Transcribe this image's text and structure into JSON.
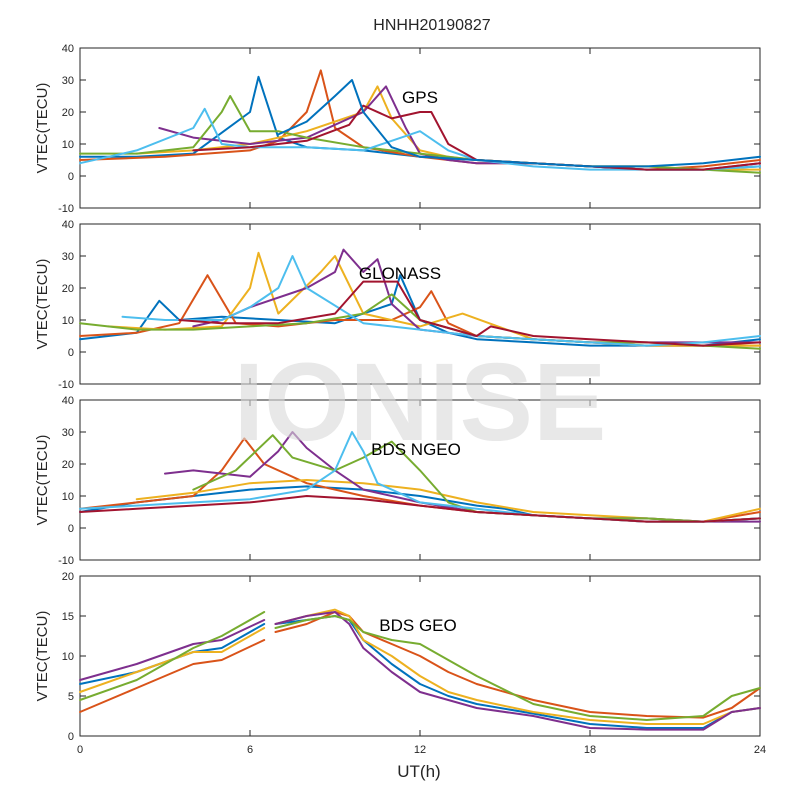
{
  "figure": {
    "title": "HNHH20190827",
    "watermark": "IONISE",
    "xlabel": "UT(h)"
  },
  "palette": [
    "#0072BD",
    "#D95319",
    "#EDB120",
    "#7E2F8E",
    "#77AC30",
    "#4DBEEE",
    "#A2142F"
  ],
  "chart_data": [
    {
      "type": "line",
      "label": "GPS",
      "ylabel": "VTEC(TECU)",
      "xlim": [
        0,
        24
      ],
      "ylim": [
        -10,
        40
      ],
      "yticks": [
        -10,
        0,
        10,
        20,
        30,
        40
      ],
      "xticks": [
        0,
        6,
        12,
        18,
        24
      ],
      "show_xtick_labels": false,
      "series": [
        {
          "x": [
            0,
            2,
            4,
            6,
            6.3,
            7,
            8,
            10,
            12,
            14,
            16,
            18,
            20,
            22,
            24
          ],
          "y": [
            6,
            6,
            7,
            20,
            31,
            12,
            9,
            8,
            6,
            5,
            4,
            3,
            2,
            2,
            3
          ]
        },
        {
          "x": [
            0,
            3,
            6,
            7,
            8,
            8.5,
            9,
            10,
            12,
            14,
            16,
            18,
            20,
            22,
            24
          ],
          "y": [
            5,
            6,
            8,
            11,
            20,
            33,
            15,
            9,
            6,
            4,
            4,
            3,
            2,
            3,
            5
          ]
        },
        {
          "x": [
            2,
            4,
            6,
            8,
            10,
            10.5,
            11,
            12,
            13,
            14,
            16,
            18,
            20,
            22,
            24
          ],
          "y": [
            7,
            8,
            10,
            14,
            20,
            28,
            18,
            8,
            6,
            5,
            4,
            3,
            3,
            2,
            2
          ]
        },
        {
          "x": [
            2.8,
            4,
            6,
            8,
            10,
            10.8,
            11.5,
            12,
            13,
            14,
            16,
            18,
            20,
            22,
            24
          ],
          "y": [
            15,
            12,
            10,
            12,
            20,
            28,
            15,
            7,
            5,
            4,
            4,
            3,
            2,
            2,
            4
          ]
        },
        {
          "x": [
            0,
            2,
            4,
            5,
            5.3,
            6,
            7,
            8,
            10,
            12,
            14,
            16,
            18,
            20,
            22,
            24
          ],
          "y": [
            7,
            7,
            9,
            20,
            25,
            14,
            14,
            12,
            9,
            7,
            5,
            4,
            3,
            3,
            2,
            1
          ]
        },
        {
          "x": [
            0,
            2,
            4,
            4.4,
            5,
            6,
            8,
            10,
            11,
            12,
            13,
            14,
            16,
            18,
            20,
            22,
            24
          ],
          "y": [
            4,
            8,
            15,
            21,
            10,
            9,
            9,
            8,
            11,
            14,
            8,
            5,
            3,
            2,
            2,
            2,
            3
          ]
        },
        {
          "x": [
            4,
            6,
            8,
            9.5,
            10,
            11,
            12,
            12.4,
            13,
            14,
            16,
            18,
            20,
            22,
            24
          ],
          "y": [
            8,
            9,
            11,
            16,
            22,
            18,
            20,
            20,
            10,
            5,
            4,
            3,
            2,
            2,
            4
          ]
        },
        {
          "x": [
            7,
            8,
            9,
            9.6,
            10,
            11,
            12,
            14,
            16,
            18,
            20,
            22,
            24
          ],
          "y": [
            13,
            17,
            25,
            30,
            20,
            9,
            6,
            5,
            4,
            3,
            3,
            4,
            6
          ]
        }
      ]
    },
    {
      "type": "line",
      "label": "GLONASS",
      "ylabel": "VTEC(TECU)",
      "xlim": [
        0,
        24
      ],
      "ylim": [
        -10,
        40
      ],
      "yticks": [
        -10,
        0,
        10,
        20,
        30,
        40
      ],
      "xticks": [
        0,
        6,
        12,
        18,
        24
      ],
      "show_xtick_labels": false,
      "series": [
        {
          "x": [
            0,
            2,
            2.8,
            3.5,
            5,
            7,
            9,
            10,
            11,
            11.3,
            12,
            13,
            14,
            16,
            18,
            20,
            22,
            24
          ],
          "y": [
            4,
            6,
            16,
            10,
            11,
            10,
            9,
            12,
            15,
            24,
            10,
            6,
            4,
            3,
            2,
            2,
            2,
            4
          ]
        },
        {
          "x": [
            0,
            2,
            3.5,
            4.5,
            5.5,
            7,
            9,
            11,
            12,
            12.4,
            13,
            14,
            16,
            18,
            20,
            22,
            24
          ],
          "y": [
            5,
            6,
            9,
            24,
            9,
            8,
            10,
            10,
            14,
            19,
            9,
            5,
            4,
            3,
            2,
            2,
            2
          ]
        },
        {
          "x": [
            1,
            3,
            5,
            6,
            6.3,
            7,
            8.5,
            9,
            10,
            12,
            13.5,
            16,
            18,
            20,
            22,
            24
          ],
          "y": [
            8,
            7,
            8,
            20,
            31,
            12,
            25,
            30,
            12,
            8,
            12,
            4,
            3,
            2,
            2,
            2
          ]
        },
        {
          "x": [
            4,
            5,
            6,
            8,
            9,
            9.3,
            10,
            10.5,
            11,
            12,
            14,
            16,
            18,
            20,
            22,
            24
          ],
          "y": [
            8,
            10,
            14,
            20,
            25,
            32,
            25,
            29,
            15,
            7,
            5,
            4,
            3,
            3,
            3,
            3
          ]
        },
        {
          "x": [
            0,
            2,
            4,
            6,
            8,
            10,
            11,
            12,
            14,
            16,
            18,
            20,
            22,
            24
          ],
          "y": [
            9,
            7,
            7,
            8,
            9,
            12,
            18,
            10,
            5,
            4,
            3,
            3,
            2,
            1
          ]
        },
        {
          "x": [
            1.5,
            3,
            5,
            6,
            7,
            7.5,
            8,
            10,
            12,
            14,
            16,
            18,
            20,
            22,
            24
          ],
          "y": [
            11,
            10,
            10,
            14,
            20,
            30,
            20,
            9,
            7,
            5,
            4,
            3,
            2,
            3,
            5
          ]
        },
        {
          "x": [
            3.5,
            5,
            7,
            9,
            10,
            11.2,
            12,
            14,
            14.5,
            16,
            18,
            20,
            22,
            24
          ],
          "y": [
            10,
            9,
            9,
            12,
            22,
            22,
            10,
            5,
            8,
            5,
            4,
            3,
            2,
            3
          ]
        }
      ]
    },
    {
      "type": "line",
      "label": "BDS NGEO",
      "ylabel": "VTEC(TECU)",
      "xlim": [
        0,
        24
      ],
      "ylim": [
        -10,
        40
      ],
      "yticks": [
        -10,
        0,
        10,
        20,
        30,
        40
      ],
      "xticks": [
        0,
        6,
        12,
        18,
        24
      ],
      "show_xtick_labels": false,
      "series": [
        {
          "x": [
            0,
            2,
            4,
            6,
            8,
            10,
            12,
            14,
            15,
            16,
            18,
            20,
            22,
            24
          ],
          "y": [
            5,
            8,
            10,
            12,
            13,
            12,
            10,
            7,
            6,
            4,
            3,
            2,
            2,
            3
          ]
        },
        {
          "x": [
            0,
            2,
            4,
            5,
            5.8,
            6.5,
            8,
            10,
            12,
            14,
            16,
            18,
            20,
            22,
            24
          ],
          "y": [
            6,
            8,
            10,
            18,
            28,
            20,
            14,
            10,
            7,
            5,
            4,
            3,
            2,
            2,
            5
          ]
        },
        {
          "x": [
            2,
            4,
            6,
            8,
            10,
            11,
            12,
            14,
            16,
            18,
            20,
            22,
            24
          ],
          "y": [
            9,
            11,
            14,
            15,
            14,
            13,
            12,
            8,
            5,
            4,
            3,
            2,
            6
          ]
        },
        {
          "x": [
            3,
            4,
            6,
            7,
            7.5,
            8,
            9,
            10,
            12,
            14,
            16,
            18,
            20,
            22,
            24
          ],
          "y": [
            17,
            18,
            16,
            24,
            30,
            25,
            18,
            12,
            8,
            5,
            4,
            3,
            3,
            2,
            2
          ]
        },
        {
          "x": [
            4,
            5.5,
            6.8,
            7.5,
            9,
            10,
            11,
            12,
            13,
            14,
            16,
            18,
            20,
            22,
            24
          ],
          "y": [
            12,
            18,
            29,
            22,
            18,
            22,
            27,
            18,
            8,
            5,
            4,
            3,
            3,
            2,
            3
          ]
        },
        {
          "x": [
            0,
            2,
            4,
            6,
            8,
            9,
            9.6,
            10,
            10.5,
            12,
            14,
            16,
            18,
            20,
            22,
            24
          ],
          "y": [
            6,
            7,
            8,
            9,
            12,
            18,
            30,
            24,
            14,
            8,
            6,
            4,
            3,
            2,
            2,
            3
          ]
        },
        {
          "x": [
            0,
            2,
            4,
            6,
            8,
            10,
            12,
            14,
            16,
            18,
            20,
            22,
            24
          ],
          "y": [
            5,
            6,
            7,
            8,
            10,
            9,
            7,
            5,
            4,
            3,
            2,
            2,
            3
          ]
        }
      ]
    },
    {
      "type": "line",
      "label": "BDS GEO",
      "ylabel": "VTEC(TECU)",
      "xlim": [
        0,
        24
      ],
      "ylim": [
        0,
        20
      ],
      "yticks": [
        0,
        5,
        10,
        15,
        20
      ],
      "xticks": [
        0,
        6,
        12,
        18,
        24
      ],
      "show_xtick_labels": true,
      "series": [
        {
          "x": [
            0,
            2,
            4,
            5,
            6.5,
            null,
            6.9,
            8,
            9,
            9.5,
            10,
            11,
            12,
            13,
            14,
            16,
            18,
            20,
            22,
            23,
            24
          ],
          "y": [
            6.5,
            8,
            10.5,
            11,
            14,
            null,
            14,
            14.5,
            15,
            14.5,
            12,
            9,
            6.5,
            5,
            4,
            2.8,
            1.5,
            1,
            1,
            3,
            3.5
          ]
        },
        {
          "x": [
            0,
            2,
            4,
            5,
            6.5,
            null,
            6.9,
            8,
            9,
            9.5,
            10,
            11,
            12,
            13,
            14,
            16,
            18,
            20,
            22,
            23,
            24
          ],
          "y": [
            3,
            6,
            9,
            9.5,
            12,
            null,
            13,
            14,
            15.5,
            15,
            13,
            11.5,
            10,
            8,
            6.5,
            4.5,
            3,
            2.5,
            2.3,
            3.5,
            6
          ]
        },
        {
          "x": [
            0,
            2,
            4,
            5,
            6.5,
            null,
            6.9,
            8,
            9,
            9.5,
            10,
            11,
            12,
            13,
            14,
            16,
            18,
            20,
            22,
            23,
            24
          ],
          "y": [
            5.5,
            8,
            10.5,
            10.5,
            13.5,
            null,
            14,
            15,
            15.8,
            15,
            12,
            10,
            7.5,
            5.5,
            4.5,
            3,
            2,
            1.5,
            1.5,
            3,
            3.5
          ]
        },
        {
          "x": [
            0,
            2,
            4,
            5,
            6.5,
            null,
            6.9,
            8,
            9,
            9.5,
            10,
            11,
            12,
            13,
            14,
            16,
            18,
            20,
            22,
            23,
            24
          ],
          "y": [
            7,
            9,
            11.5,
            12,
            14.5,
            null,
            14,
            15,
            15.5,
            14,
            11,
            8,
            5.5,
            4.5,
            3.5,
            2.5,
            1,
            0.8,
            0.8,
            3,
            3.5
          ]
        },
        {
          "x": [
            0,
            2,
            4,
            5,
            6.5,
            null,
            6.9,
            8,
            9,
            9.5,
            10,
            11,
            12,
            13,
            14,
            16,
            18,
            20,
            22,
            23,
            24
          ],
          "y": [
            4.5,
            7,
            11,
            12.5,
            15.5,
            null,
            13.5,
            14.5,
            15,
            14.5,
            13,
            12,
            11.5,
            9.5,
            7.5,
            4,
            2.5,
            2,
            2.5,
            5,
            6
          ]
        }
      ]
    }
  ]
}
